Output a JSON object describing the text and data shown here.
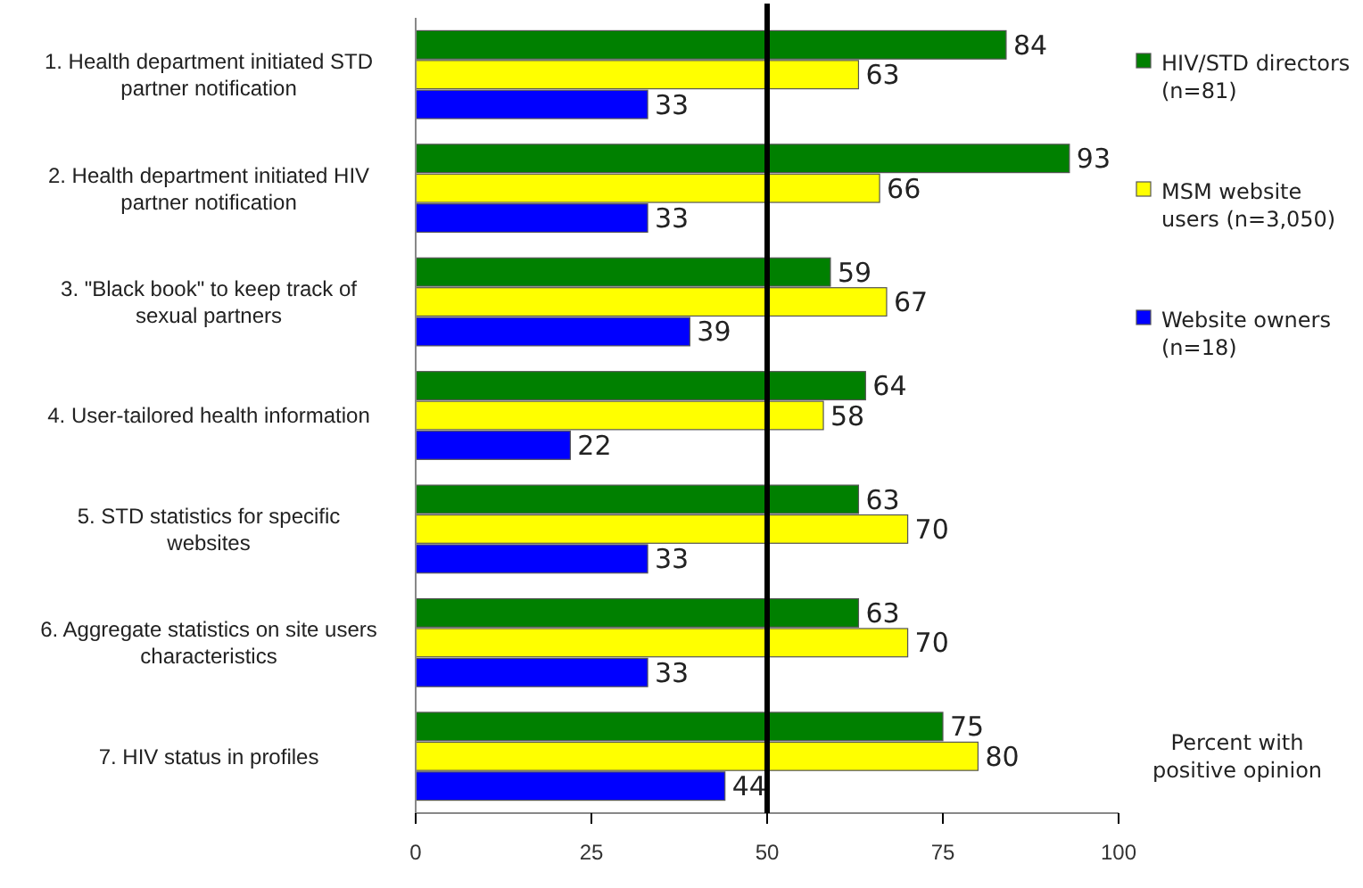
{
  "chart_data": {
    "type": "bar",
    "orientation": "horizontal",
    "categories": [
      "1. Health department initiated STD partner notification",
      "2. Health department initiated HIV partner notification",
      "3. \"Black book\" to keep track of sexual partners",
      "4. User-tailored health information",
      "5. STD statistics for specific websites",
      "6. Aggregate statistics on site users characteristics",
      "7. HIV status in profiles"
    ],
    "series": [
      {
        "name": "HIV/STD directors (n=81)",
        "color": "#008000",
        "values": [
          84,
          93,
          59,
          64,
          63,
          63,
          75
        ]
      },
      {
        "name": "MSM website users (n=3,050)",
        "color": "#ffff00",
        "values": [
          63,
          66,
          67,
          58,
          70,
          70,
          80
        ]
      },
      {
        "name": "Website owners (n=18)",
        "color": "#0000ff",
        "values": [
          33,
          33,
          39,
          22,
          33,
          33,
          44
        ]
      }
    ],
    "xlim": [
      0,
      100
    ],
    "xticks": [
      0,
      25,
      50,
      75,
      100
    ],
    "ref_lines": [
      {
        "axis": "x",
        "value": 50,
        "color": "#000000"
      }
    ],
    "data_labels": true,
    "legend": "right",
    "grid": false,
    "annotations": [
      "Percent with positive opinion"
    ]
  }
}
